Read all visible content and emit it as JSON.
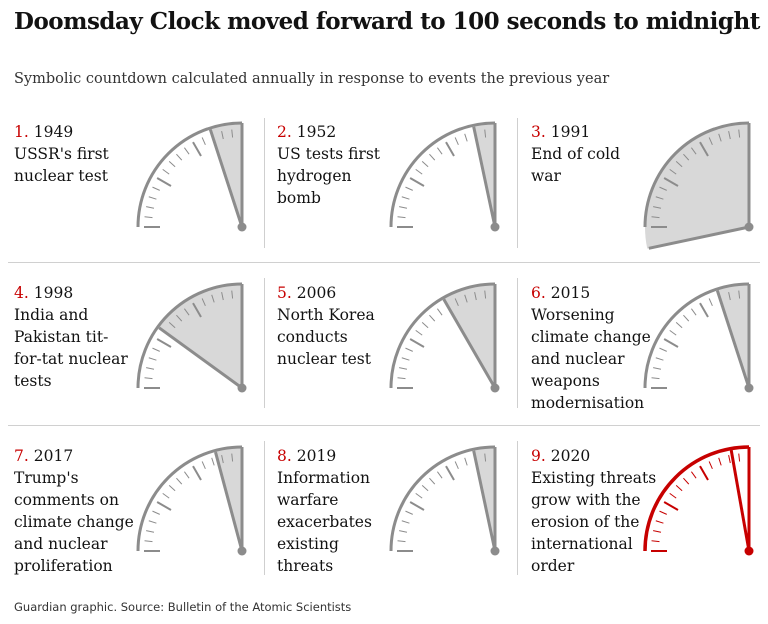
{
  "title": "Doomsday Clock moved forward to 100 seconds to midnight",
  "subtitle": "Symbolic countdown calculated annually in response to events the previous year",
  "colors": {
    "accent": "#c70000",
    "clock": "#8c8c8c",
    "fill": "#d8d8d8"
  },
  "footer": "Guardian graphic. Source: Bulletin of the Atomic Scientists",
  "chart_data": {
    "type": "small-multiples-gauge",
    "title": "Doomsday Clock moved forward to 100 seconds to midnight",
    "unit": "minutes to midnight",
    "panels": [
      {
        "index": "1.",
        "year": "1949",
        "lines": [
          "USSR's first",
          "nuclear test"
        ],
        "minutes_to_midnight": 3,
        "highlight": false
      },
      {
        "index": "2.",
        "year": "1952",
        "lines": [
          "US tests first",
          "hydrogen",
          "bomb"
        ],
        "minutes_to_midnight": 2,
        "highlight": false
      },
      {
        "index": "3.",
        "year": "1991",
        "lines": [
          "End of cold",
          "war"
        ],
        "minutes_to_midnight": 17,
        "highlight": false
      },
      {
        "index": "4.",
        "year": "1998",
        "lines": [
          "India and",
          "Pakistan tit-",
          "for-tat nuclear",
          "tests"
        ],
        "minutes_to_midnight": 9,
        "highlight": false
      },
      {
        "index": "5.",
        "year": "2006",
        "lines": [
          "North Korea",
          "conducts",
          "nuclear test"
        ],
        "minutes_to_midnight": 5,
        "highlight": false
      },
      {
        "index": "6.",
        "year": "2015",
        "lines": [
          "Worsening",
          "climate change",
          "and nuclear",
          "weapons",
          "modernisation"
        ],
        "minutes_to_midnight": 3,
        "highlight": false
      },
      {
        "index": "7.",
        "year": "2017",
        "lines": [
          "Trump's",
          "comments on",
          "climate change",
          "and nuclear",
          "proliferation"
        ],
        "minutes_to_midnight": 2.5,
        "highlight": false
      },
      {
        "index": "8.",
        "year": "2019",
        "lines": [
          "Information",
          "warfare",
          "exacerbates",
          "existing",
          "threats"
        ],
        "minutes_to_midnight": 2,
        "highlight": false
      },
      {
        "index": "9.",
        "year": "2020",
        "lines": [
          "Existing threats",
          "grow with the",
          "erosion of the",
          "international",
          "order"
        ],
        "minutes_to_midnight": 1.667,
        "highlight": true
      }
    ]
  }
}
